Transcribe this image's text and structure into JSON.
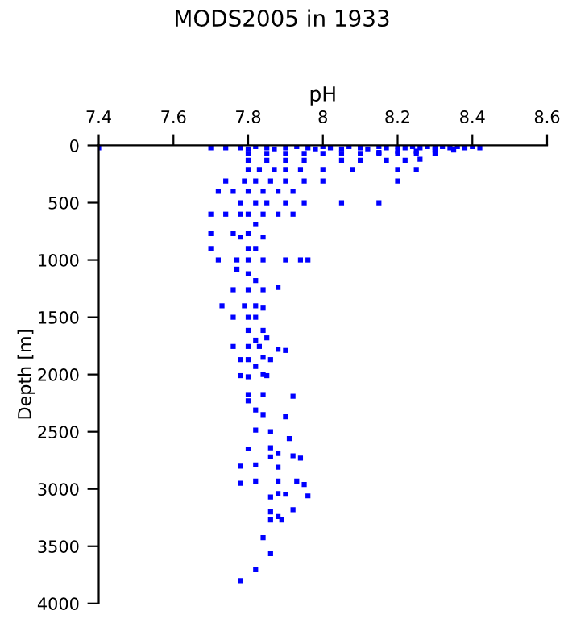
{
  "chart_data": {
    "type": "scatter",
    "title": "MODS2005 in 1933",
    "xlabel": "pH",
    "ylabel": "Depth [m]",
    "xlim": [
      7.4,
      8.6
    ],
    "xticks": [
      7.4,
      7.6,
      7.8,
      8,
      8.2,
      8.4,
      8.6
    ],
    "ylim": [
      4000,
      0
    ],
    "yticks": [
      0,
      500,
      1000,
      1500,
      2000,
      2500,
      3000,
      3500,
      4000
    ],
    "grid": false,
    "marker": "square",
    "legend": false,
    "series": [
      {
        "color": "#0000ff",
        "x": [
          7.4,
          7.7,
          7.74,
          7.78,
          7.8,
          7.82,
          7.85,
          7.87,
          7.9,
          7.93,
          7.96,
          7.98,
          8.0,
          8.02,
          8.05,
          8.07,
          8.1,
          8.12,
          8.15,
          8.17,
          8.2,
          8.22,
          8.24,
          8.26,
          8.28,
          8.3,
          8.32,
          8.34,
          8.36,
          8.38,
          8.4,
          8.42,
          8.3,
          8.25,
          8.2,
          8.15,
          8.35,
          7.8,
          7.85,
          7.9,
          7.95,
          8.0,
          8.05,
          8.1,
          8.15,
          8.2,
          8.25,
          8.3,
          7.8,
          7.85,
          7.9,
          7.95,
          8.05,
          8.1,
          8.17,
          8.22,
          8.26,
          7.8,
          7.83,
          7.87,
          7.9,
          7.94,
          8.0,
          8.08,
          8.2,
          8.25,
          7.74,
          7.79,
          7.82,
          7.86,
          7.9,
          7.95,
          8.0,
          8.2,
          7.72,
          7.76,
          7.8,
          7.84,
          7.88,
          7.92,
          7.78,
          7.82,
          7.85,
          7.9,
          7.95,
          8.05,
          8.15,
          7.7,
          7.74,
          7.78,
          7.8,
          7.84,
          7.88,
          7.92,
          7.82,
          7.7,
          7.76,
          7.8,
          7.84,
          7.78,
          7.7,
          7.8,
          7.82,
          7.72,
          7.77,
          7.8,
          7.84,
          7.9,
          7.94,
          7.96,
          7.77,
          7.8,
          7.82,
          7.76,
          7.8,
          7.84,
          7.88,
          7.73,
          7.79,
          7.82,
          7.84,
          7.76,
          7.8,
          7.82,
          7.8,
          7.84,
          7.82,
          7.85,
          7.76,
          7.8,
          7.83,
          7.88,
          7.9,
          7.78,
          7.8,
          7.84,
          7.86,
          7.82,
          7.78,
          7.8,
          7.84,
          7.85,
          7.8,
          7.84,
          7.92,
          7.8,
          7.82,
          7.84,
          7.9,
          7.82,
          7.86,
          7.91,
          7.8,
          7.86,
          7.88,
          7.86,
          7.92,
          7.94,
          7.78,
          7.82,
          7.88,
          7.78,
          7.82,
          7.88,
          7.93,
          7.95,
          7.88,
          7.86,
          7.9,
          7.96,
          7.92,
          7.86,
          7.88,
          7.86,
          7.89,
          7.84,
          7.86,
          7.82,
          7.78
        ],
        "values": [
          20,
          20,
          20,
          20,
          30,
          10,
          20,
          30,
          20,
          10,
          20,
          30,
          10,
          20,
          30,
          10,
          20,
          30,
          10,
          20,
          10,
          20,
          10,
          20,
          10,
          20,
          10,
          20,
          10,
          20,
          10,
          20,
          40,
          50,
          50,
          60,
          40,
          70,
          70,
          70,
          70,
          70,
          70,
          70,
          70,
          70,
          70,
          70,
          130,
          130,
          130,
          130,
          130,
          130,
          130,
          130,
          120,
          210,
          210,
          210,
          210,
          210,
          210,
          210,
          210,
          210,
          310,
          310,
          310,
          310,
          310,
          310,
          310,
          310,
          400,
          400,
          400,
          400,
          400,
          400,
          500,
          500,
          500,
          500,
          500,
          500,
          500,
          600,
          600,
          600,
          600,
          600,
          600,
          600,
          690,
          770,
          770,
          770,
          800,
          800,
          900,
          900,
          900,
          1000,
          1000,
          1000,
          1000,
          1000,
          1000,
          1000,
          1080,
          1120,
          1180,
          1260,
          1260,
          1260,
          1240,
          1400,
          1400,
          1400,
          1420,
          1500,
          1500,
          1500,
          1615,
          1615,
          1700,
          1680,
          1755,
          1755,
          1755,
          1780,
          1790,
          1870,
          1870,
          1850,
          1870,
          1930,
          2010,
          2020,
          2000,
          2010,
          2175,
          2175,
          2190,
          2230,
          2310,
          2350,
          2370,
          2485,
          2500,
          2560,
          2650,
          2640,
          2690,
          2720,
          2710,
          2730,
          2800,
          2790,
          2810,
          2950,
          2930,
          2930,
          2930,
          2960,
          3040,
          3070,
          3045,
          3060,
          3180,
          3200,
          3240,
          3270,
          3270,
          3425,
          3565,
          3705,
          3800
        ]
      }
    ]
  }
}
